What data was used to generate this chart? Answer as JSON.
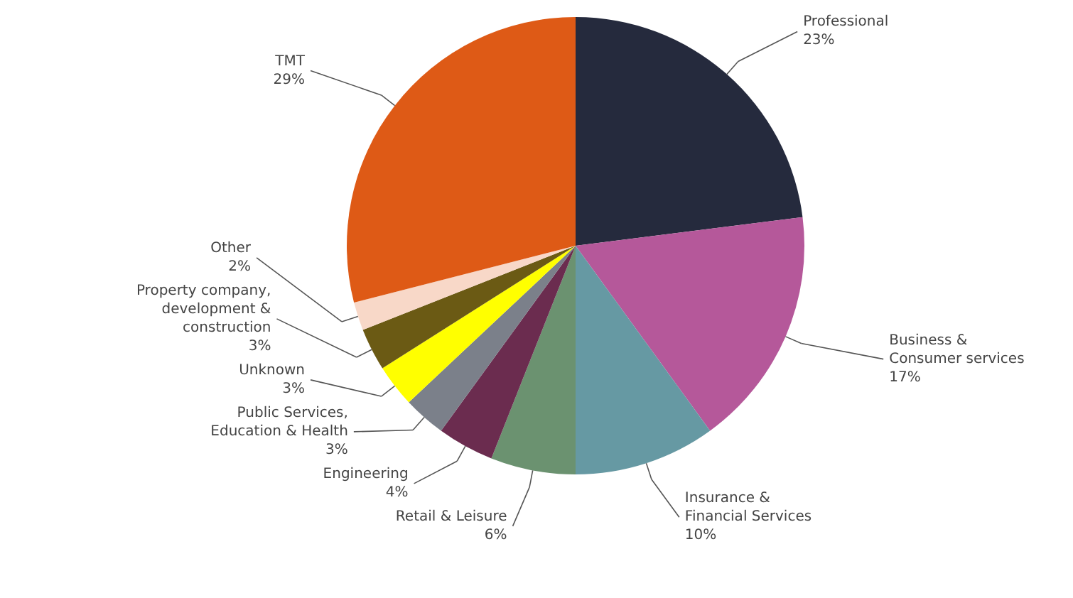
{
  "chart_data": {
    "type": "pie",
    "categories": [
      "Professional",
      "Business & Consumer services",
      "Insurance & Financial Services",
      "Retail & Leisure",
      "Engineering",
      "Public Services, Education & Health",
      "Unknown",
      "Property company, development & construction",
      "Other",
      "TMT"
    ],
    "values": [
      23,
      17,
      10,
      6,
      4,
      3,
      3,
      3,
      2,
      29
    ],
    "value_labels": [
      "23%",
      "17%",
      "10%",
      "6%",
      "4%",
      "3%",
      "3%",
      "3%",
      "2%",
      "29%"
    ],
    "colors": [
      "#252a3d",
      "#b5589a",
      "#6699a3",
      "#6b9270",
      "#6b2c4f",
      "#7b808a",
      "#ffff00",
      "#6b5a14",
      "#f8d8c8",
      "#de5a16"
    ]
  }
}
